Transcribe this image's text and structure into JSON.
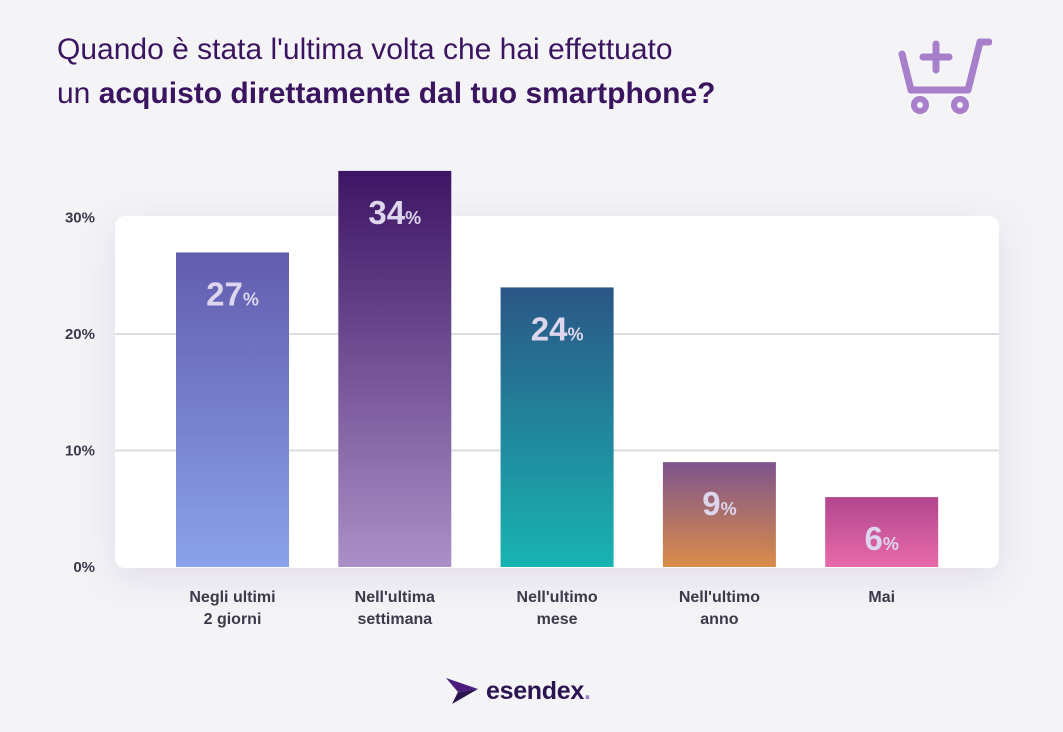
{
  "header": {
    "title_line1": "Quando è stata l'ultima volta che hai effettuato",
    "title_line2_prefix": "un ",
    "title_line2_bold": "acquisto direttamente dal tuo smartphone?",
    "icon": "cart-plus-icon"
  },
  "brand": {
    "name": "esendex",
    "suffix": "."
  },
  "colors": {
    "title": "#3b1460",
    "icon": "#a77fcb",
    "grid": "#dcdce2",
    "axis_text": "#3a3a4a",
    "bar_label": "#ddd6ec"
  },
  "chart_data": {
    "type": "bar",
    "categories": [
      "Negli ultimi\n2 giorni",
      "Nell'ultima\nsettimana",
      "Nell'ultimo\nmese",
      "Nell'ultimo\nanno",
      "Mai"
    ],
    "values": [
      27,
      34,
      24,
      9,
      6
    ],
    "value_suffix": "%",
    "yticks": [
      "0%",
      "10%",
      "20%",
      "30%"
    ],
    "ytick_values": [
      0,
      10,
      20,
      30
    ],
    "ylim": [
      0,
      30
    ],
    "grid": true,
    "bar_gradients": [
      [
        "#625cae",
        "#8aa2ea"
      ],
      [
        "#3d1565",
        "#ab90c7"
      ],
      [
        "#2b5686",
        "#18b4b1"
      ],
      [
        "#7e548d",
        "#da8c48"
      ],
      [
        "#b2468f",
        "#e86aa9"
      ]
    ]
  }
}
